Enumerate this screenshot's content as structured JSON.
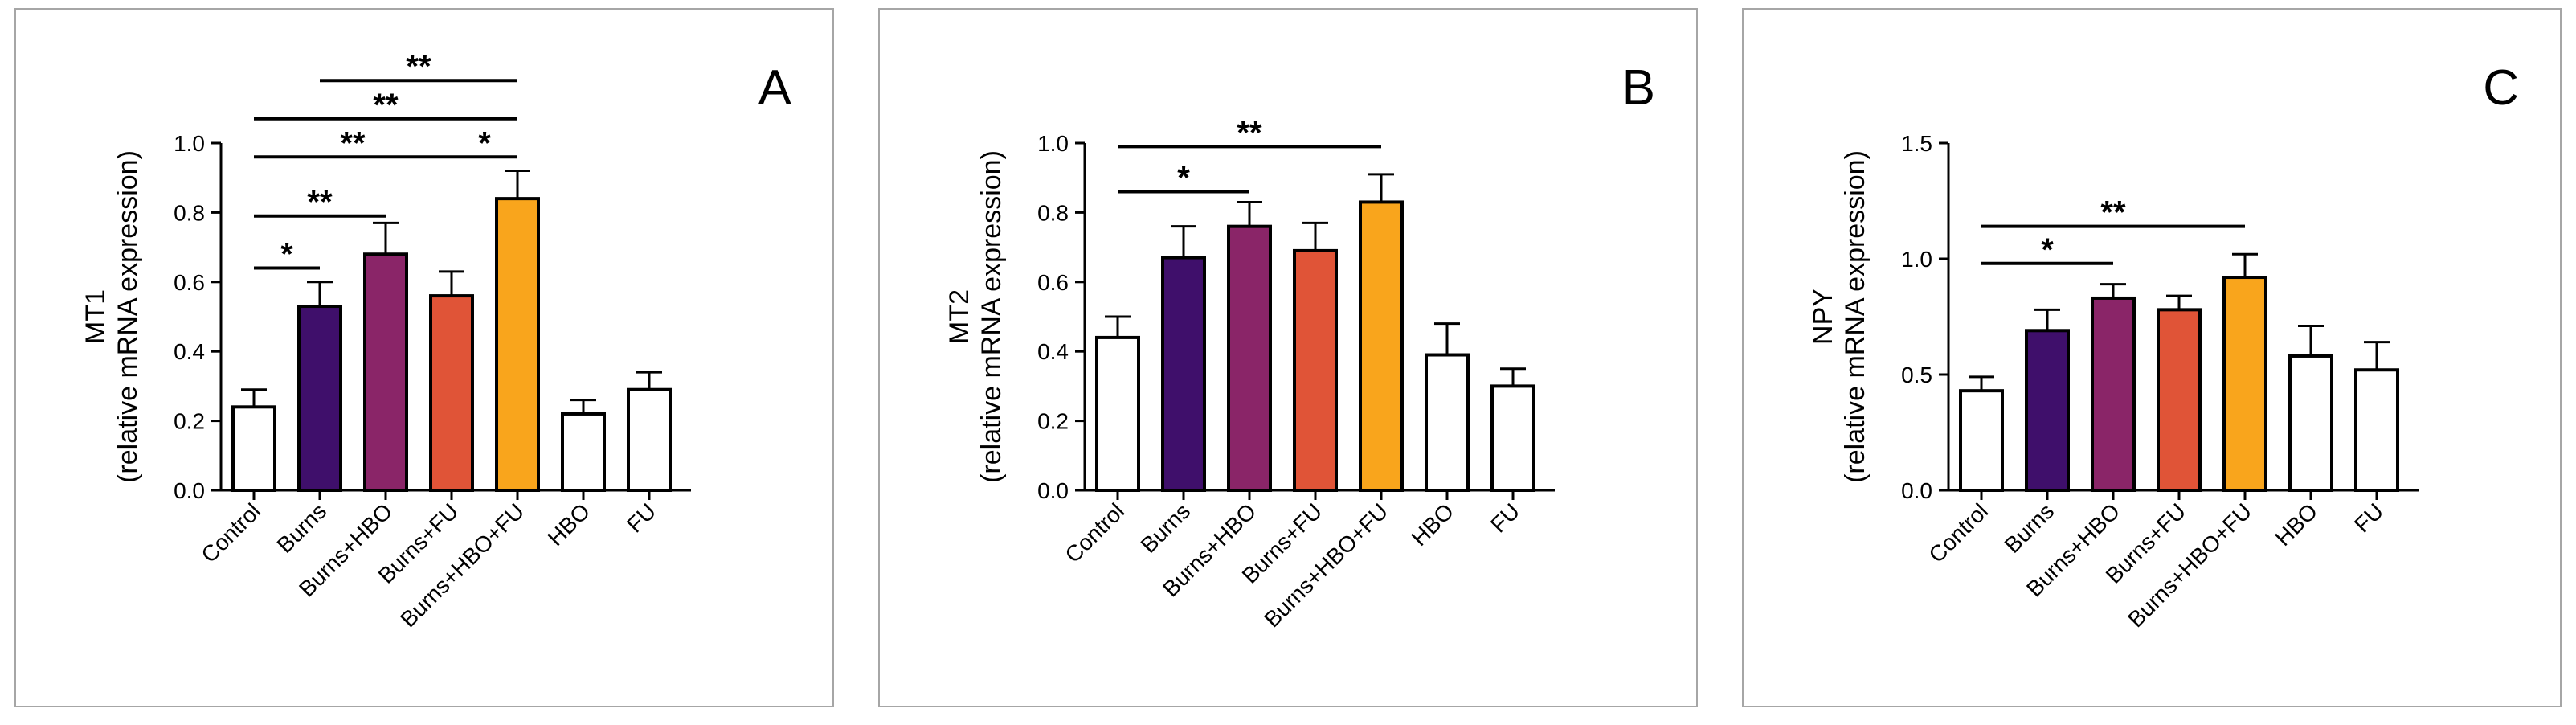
{
  "chart_data": [
    {
      "type": "bar",
      "panel_letter": "A",
      "ylabel_main": "MT1",
      "ylabel_sub": "(relative mRNA expression)",
      "categories": [
        "Control",
        "Burns",
        "Burns+HBO",
        "Burns+FU",
        "Burns+HBO+FU",
        "HBO",
        "FU"
      ],
      "values": [
        0.24,
        0.53,
        0.68,
        0.56,
        0.84,
        0.22,
        0.29
      ],
      "errors": [
        0.05,
        0.07,
        0.09,
        0.07,
        0.08,
        0.04,
        0.05
      ],
      "ylim": [
        0,
        1.0
      ],
      "yticks": [
        "0.0",
        "0.2",
        "0.4",
        "0.6",
        "0.8",
        "1.0"
      ],
      "ytick_values": [
        0,
        0.2,
        0.4,
        0.6,
        0.8,
        1.0
      ],
      "significance": [
        {
          "from": 0,
          "to": 1,
          "label": "*",
          "level": 0.64
        },
        {
          "from": 0,
          "to": 2,
          "label": "**",
          "level": 0.79
        },
        {
          "from": 0,
          "to": 3,
          "label": "**",
          "level": 0.96
        },
        {
          "from": 3,
          "to": 4,
          "label": "*",
          "level": 0.96
        },
        {
          "from": 0,
          "to": 4,
          "label": "**",
          "level": 1.07
        },
        {
          "from": 1,
          "to": 4,
          "label": "**",
          "level": 1.18
        }
      ]
    },
    {
      "type": "bar",
      "panel_letter": "B",
      "ylabel_main": "MT2",
      "ylabel_sub": "(relative mRNA expression)",
      "categories": [
        "Control",
        "Burns",
        "Burns+HBO",
        "Burns+FU",
        "Burns+HBO+FU",
        "HBO",
        "FU"
      ],
      "values": [
        0.44,
        0.67,
        0.76,
        0.69,
        0.83,
        0.39,
        0.3
      ],
      "errors": [
        0.06,
        0.09,
        0.07,
        0.08,
        0.08,
        0.09,
        0.05
      ],
      "ylim": [
        0,
        1.0
      ],
      "yticks": [
        "0.0",
        "0.2",
        "0.4",
        "0.6",
        "0.8",
        "1.0"
      ],
      "ytick_values": [
        0,
        0.2,
        0.4,
        0.6,
        0.8,
        1.0
      ],
      "significance": [
        {
          "from": 0,
          "to": 2,
          "label": "*",
          "level": 0.86
        },
        {
          "from": 0,
          "to": 4,
          "label": "**",
          "level": 0.99
        }
      ]
    },
    {
      "type": "bar",
      "panel_letter": "C",
      "ylabel_main": "NPY",
      "ylabel_sub": "(relative mRNA expression)",
      "categories": [
        "Control",
        "Burns",
        "Burns+HBO",
        "Burns+FU",
        "Burns+HBO+FU",
        "HBO",
        "FU"
      ],
      "values": [
        0.43,
        0.69,
        0.83,
        0.78,
        0.92,
        0.58,
        0.52
      ],
      "errors": [
        0.06,
        0.09,
        0.06,
        0.06,
        0.1,
        0.13,
        0.12
      ],
      "ylim": [
        0,
        1.5
      ],
      "yticks": [
        "0.0",
        "0.5",
        "1.0",
        "1.5"
      ],
      "ytick_values": [
        0,
        0.5,
        1.0,
        1.5
      ],
      "significance": [
        {
          "from": 0,
          "to": 2,
          "label": "*",
          "level": 0.98
        },
        {
          "from": 0,
          "to": 4,
          "label": "**",
          "level": 1.14
        }
      ]
    }
  ],
  "colors": {
    "bar_fills": [
      "#ffffff",
      "#3f0f6b",
      "#8a2568",
      "#e05437",
      "#f9a51c",
      "#ffffff",
      "#ffffff"
    ],
    "outline": "#000000",
    "panel_border": "#a6a6a6"
  }
}
